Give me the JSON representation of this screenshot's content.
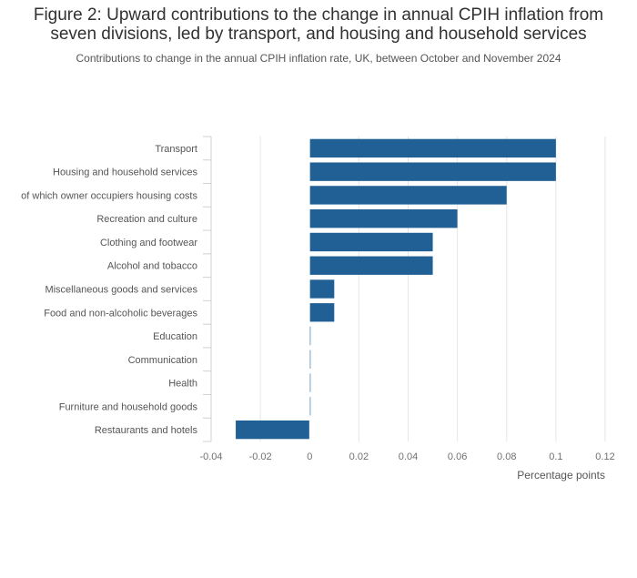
{
  "chart_data": {
    "type": "bar",
    "orientation": "horizontal",
    "title": "Figure 2: Upward contributions to the change in annual CPIH inflation from seven divisions, led by transport, and housing and household services",
    "title_lines": [
      "Figure 2: Upward contributions to the change in annual CPIH inflation from",
      "seven divisions, led by transport, and housing and household services"
    ],
    "subtitle": "Contributions to change in the annual CPIH inflation rate, UK, between October and November 2024",
    "xlabel": "Percentage points",
    "ylabel": "",
    "xlim": [
      -0.04,
      0.12
    ],
    "xticks": [
      -0.04,
      -0.02,
      0,
      0.02,
      0.04,
      0.06,
      0.08,
      0.1,
      0.12
    ],
    "xtick_labels": [
      "-0.04",
      "-0.02",
      "0",
      "0.02",
      "0.04",
      "0.06",
      "0.08",
      "0.1",
      "0.12"
    ],
    "grid": true,
    "categories": [
      "Transport",
      "Housing and household services",
      "of which owner occupiers housing costs",
      "Recreation and culture",
      "Clothing and footwear",
      "Alcohol and tobacco",
      "Miscellaneous goods and services",
      "Food and non-alcoholic beverages",
      "Education",
      "Communication",
      "Health",
      "Furniture and household goods",
      "Restaurants and hotels"
    ],
    "values": [
      0.1,
      0.1,
      0.08,
      0.06,
      0.05,
      0.05,
      0.01,
      0.01,
      0,
      0,
      0,
      0,
      -0.03
    ],
    "bar_color": "#206095"
  }
}
